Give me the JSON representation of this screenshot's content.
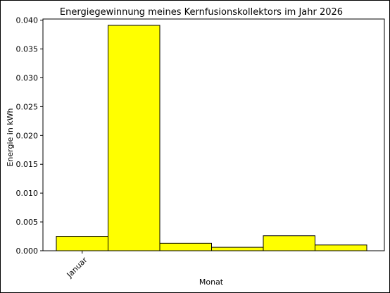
{
  "chart_data": {
    "type": "bar",
    "title": "Energiegewinnung meines Kernfusionskollektors im Jahr 2026",
    "xlabel": "Monat",
    "ylabel": "Energie in kWh",
    "categories": [
      "Januar",
      "",
      "",
      "",
      "",
      ""
    ],
    "values": [
      0.0025,
      0.0391,
      0.0013,
      0.0006,
      0.0026,
      0.001
    ],
    "ylim": [
      0,
      0.0402
    ],
    "yticks": [
      0.0,
      0.005,
      0.01,
      0.015,
      0.02,
      0.025,
      0.03,
      0.035,
      0.04
    ],
    "ytick_labels": [
      "0.000",
      "0.005",
      "0.010",
      "0.015",
      "0.020",
      "0.025",
      "0.030",
      "0.035",
      "0.040"
    ],
    "grid": false,
    "legend": "none",
    "colors": {
      "bar_fill": "#ffff00",
      "bar_edge": "#000000"
    }
  }
}
